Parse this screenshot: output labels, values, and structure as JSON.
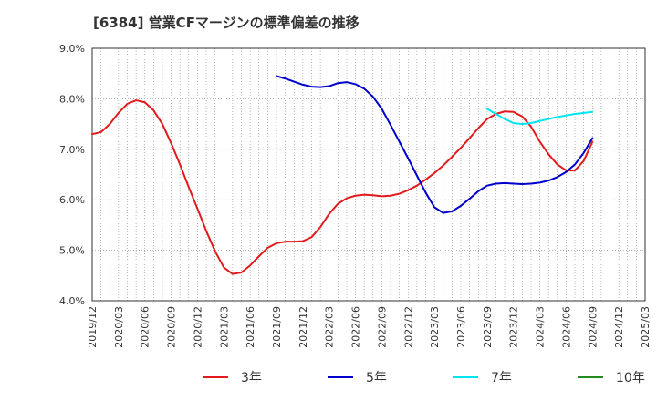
{
  "chart_data": {
    "type": "line",
    "title": "[6384]  営業CFマージンの標準偏差の推移",
    "xlabel": "",
    "ylabel": "",
    "ylim": [
      4.0,
      9.0
    ],
    "y_ticks": [
      "4.0%",
      "5.0%",
      "6.0%",
      "7.0%",
      "8.0%",
      "9.0%"
    ],
    "y_tick_values": [
      4.0,
      5.0,
      6.0,
      7.0,
      8.0,
      9.0
    ],
    "x_ticks": [
      "2019/12",
      "2020/03",
      "2020/06",
      "2020/09",
      "2020/12",
      "2021/03",
      "2021/06",
      "2021/09",
      "2021/12",
      "2022/03",
      "2022/06",
      "2022/09",
      "2022/12",
      "2023/03",
      "2023/06",
      "2023/09",
      "2023/12",
      "2024/03",
      "2024/06",
      "2024/09",
      "2024/12",
      "2025/03"
    ],
    "xlim": [
      "2019/12",
      "2025/03"
    ],
    "grid": true,
    "legend_position": "bottom",
    "series": [
      {
        "name": "3年",
        "color": "#e31a1c",
        "points": [
          [
            "2019/12",
            7.3
          ],
          [
            "2020/01",
            7.34
          ],
          [
            "2020/02",
            7.5
          ],
          [
            "2020/03",
            7.72
          ],
          [
            "2020/04",
            7.9
          ],
          [
            "2020/05",
            7.97
          ],
          [
            "2020/06",
            7.93
          ],
          [
            "2020/07",
            7.77
          ],
          [
            "2020/08",
            7.5
          ],
          [
            "2020/09",
            7.12
          ],
          [
            "2020/10",
            6.7
          ],
          [
            "2020/11",
            6.25
          ],
          [
            "2020/12",
            5.82
          ],
          [
            "2021/01",
            5.38
          ],
          [
            "2021/02",
            4.98
          ],
          [
            "2021/03",
            4.66
          ],
          [
            "2021/04",
            4.53
          ],
          [
            "2021/05",
            4.56
          ],
          [
            "2021/06",
            4.7
          ],
          [
            "2021/07",
            4.88
          ],
          [
            "2021/08",
            5.05
          ],
          [
            "2021/09",
            5.14
          ],
          [
            "2021/10",
            5.17
          ],
          [
            "2021/11",
            5.17
          ],
          [
            "2021/12",
            5.18
          ],
          [
            "2022/01",
            5.26
          ],
          [
            "2022/02",
            5.46
          ],
          [
            "2022/03",
            5.72
          ],
          [
            "2022/04",
            5.92
          ],
          [
            "2022/05",
            6.03
          ],
          [
            "2022/06",
            6.08
          ],
          [
            "2022/07",
            6.1
          ],
          [
            "2022/08",
            6.09
          ],
          [
            "2022/09",
            6.07
          ],
          [
            "2022/10",
            6.08
          ],
          [
            "2022/11",
            6.12
          ],
          [
            "2022/12",
            6.19
          ],
          [
            "2023/01",
            6.28
          ],
          [
            "2023/02",
            6.4
          ],
          [
            "2023/03",
            6.53
          ],
          [
            "2023/04",
            6.68
          ],
          [
            "2023/05",
            6.85
          ],
          [
            "2023/06",
            7.03
          ],
          [
            "2023/07",
            7.22
          ],
          [
            "2023/08",
            7.42
          ],
          [
            "2023/09",
            7.6
          ],
          [
            "2023/10",
            7.7
          ],
          [
            "2023/11",
            7.75
          ],
          [
            "2023/12",
            7.74
          ],
          [
            "2024/01",
            7.65
          ],
          [
            "2024/02",
            7.45
          ],
          [
            "2024/03",
            7.15
          ],
          [
            "2024/04",
            6.9
          ],
          [
            "2024/05",
            6.7
          ],
          [
            "2024/06",
            6.58
          ],
          [
            "2024/07",
            6.58
          ],
          [
            "2024/08",
            6.77
          ],
          [
            "2024/09",
            7.15
          ]
        ]
      },
      {
        "name": "5年",
        "color": "#0000cd",
        "points": [
          [
            "2021/09",
            8.45
          ],
          [
            "2021/10",
            8.4
          ],
          [
            "2021/11",
            8.34
          ],
          [
            "2021/12",
            8.28
          ],
          [
            "2022/01",
            8.24
          ],
          [
            "2022/02",
            8.23
          ],
          [
            "2022/03",
            8.25
          ],
          [
            "2022/04",
            8.31
          ],
          [
            "2022/05",
            8.33
          ],
          [
            "2022/06",
            8.29
          ],
          [
            "2022/07",
            8.2
          ],
          [
            "2022/08",
            8.04
          ],
          [
            "2022/09",
            7.8
          ],
          [
            "2022/10",
            7.48
          ],
          [
            "2022/11",
            7.15
          ],
          [
            "2022/12",
            6.82
          ],
          [
            "2023/01",
            6.48
          ],
          [
            "2023/02",
            6.14
          ],
          [
            "2023/03",
            5.85
          ],
          [
            "2023/04",
            5.74
          ],
          [
            "2023/05",
            5.77
          ],
          [
            "2023/06",
            5.88
          ],
          [
            "2023/07",
            6.02
          ],
          [
            "2023/08",
            6.17
          ],
          [
            "2023/09",
            6.28
          ],
          [
            "2023/10",
            6.32
          ],
          [
            "2023/11",
            6.33
          ],
          [
            "2023/12",
            6.32
          ],
          [
            "2024/01",
            6.31
          ],
          [
            "2024/02",
            6.32
          ],
          [
            "2024/03",
            6.34
          ],
          [
            "2024/04",
            6.38
          ],
          [
            "2024/05",
            6.45
          ],
          [
            "2024/06",
            6.55
          ],
          [
            "2024/07",
            6.7
          ],
          [
            "2024/08",
            6.93
          ],
          [
            "2024/09",
            7.22
          ]
        ]
      },
      {
        "name": "7年",
        "color": "#00e5ee",
        "points": [
          [
            "2023/09",
            7.8
          ],
          [
            "2023/10",
            7.7
          ],
          [
            "2023/11",
            7.6
          ],
          [
            "2023/12",
            7.52
          ],
          [
            "2024/01",
            7.5
          ],
          [
            "2024/02",
            7.52
          ],
          [
            "2024/03",
            7.56
          ],
          [
            "2024/04",
            7.6
          ],
          [
            "2024/05",
            7.64
          ],
          [
            "2024/06",
            7.67
          ],
          [
            "2024/07",
            7.7
          ],
          [
            "2024/08",
            7.72
          ],
          [
            "2024/09",
            7.74
          ]
        ]
      },
      {
        "name": "10年",
        "color": "#228b22",
        "points": []
      }
    ]
  }
}
